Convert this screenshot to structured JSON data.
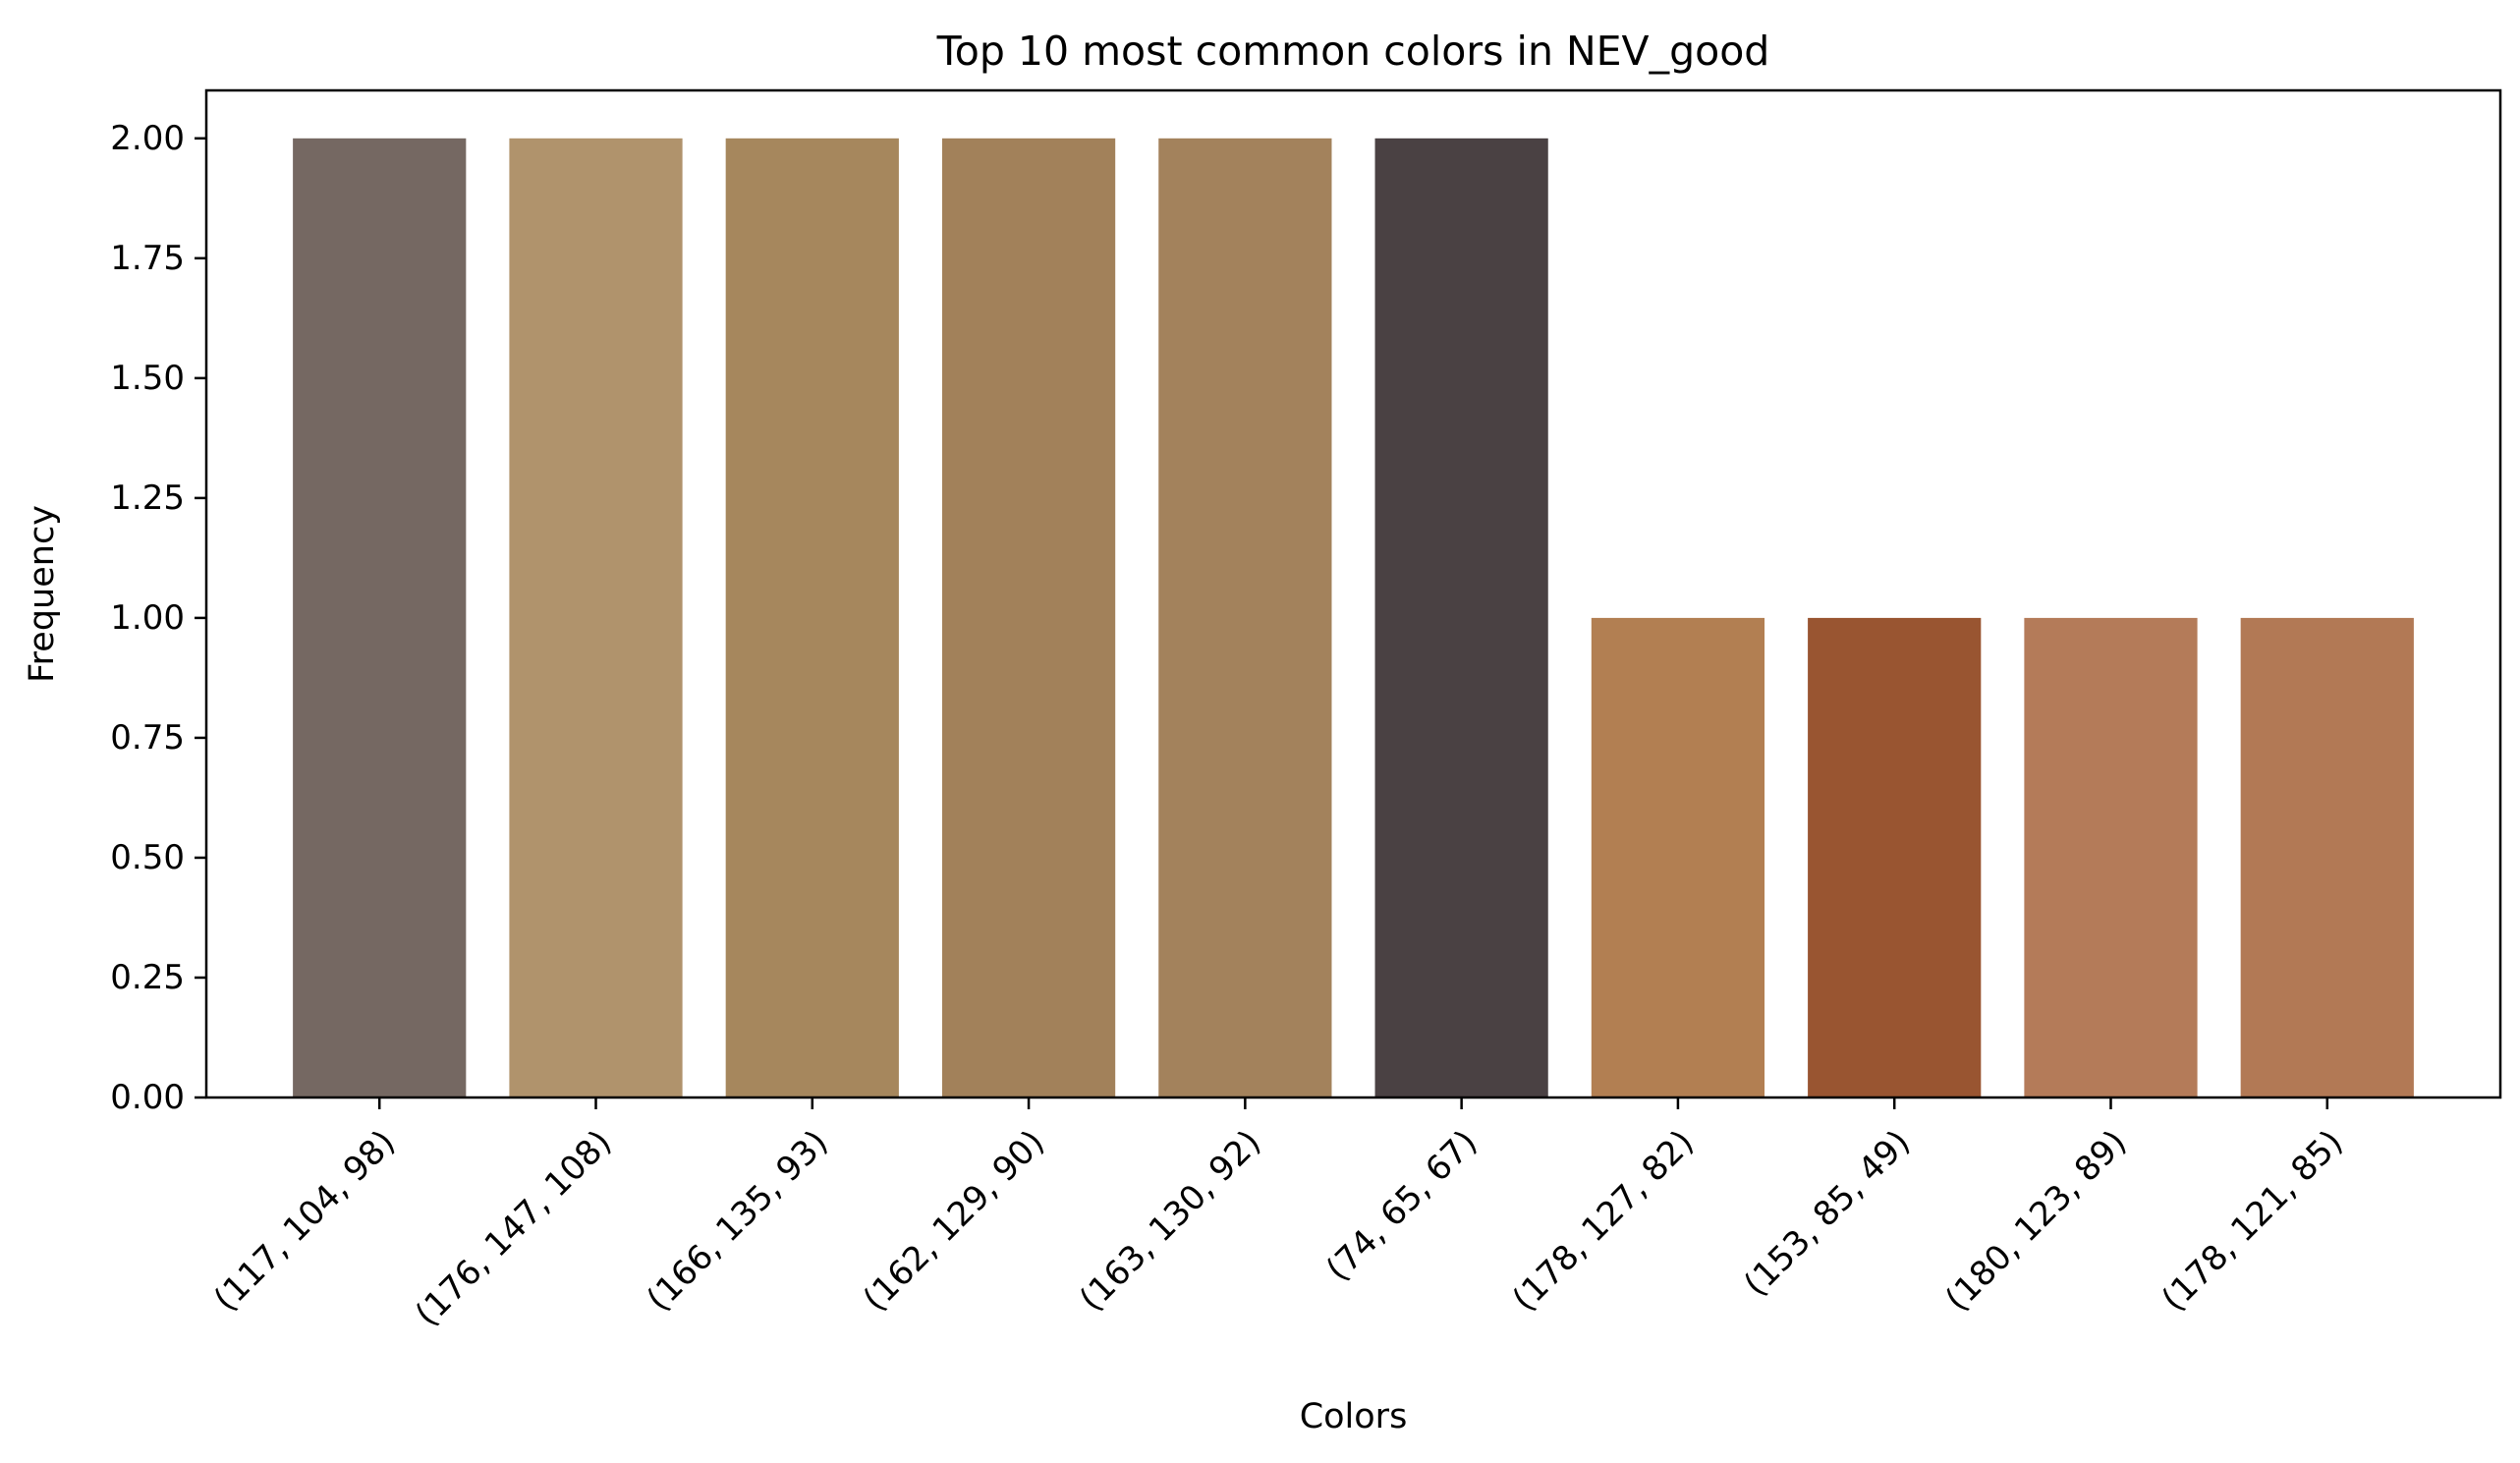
{
  "chart_data": {
    "type": "bar",
    "title": "Top 10 most common colors in NEV_good",
    "xlabel": "Colors",
    "ylabel": "Frequency",
    "ylim": [
      0,
      2.1
    ],
    "yticks": [
      "0.00",
      "0.25",
      "0.50",
      "0.75",
      "1.00",
      "1.25",
      "1.50",
      "1.75",
      "2.00"
    ],
    "categories": [
      "(117, 104, 98)",
      "(176, 147, 108)",
      "(166, 135, 93)",
      "(162, 129, 90)",
      "(163, 130, 92)",
      "(74, 65, 67)",
      "(178, 127, 82)",
      "(153, 85, 49)",
      "(180, 123, 89)",
      "(178, 121, 85)"
    ],
    "values": [
      2,
      2,
      2,
      2,
      2,
      2,
      1,
      1,
      1,
      1
    ],
    "colors": [
      "#756862",
      "#b0936c",
      "#a6875d",
      "#a2815a",
      "#a3825c",
      "#4a4143",
      "#b27f52",
      "#995531",
      "#b47b59",
      "#b27955"
    ],
    "grid": false,
    "legend": "none"
  }
}
